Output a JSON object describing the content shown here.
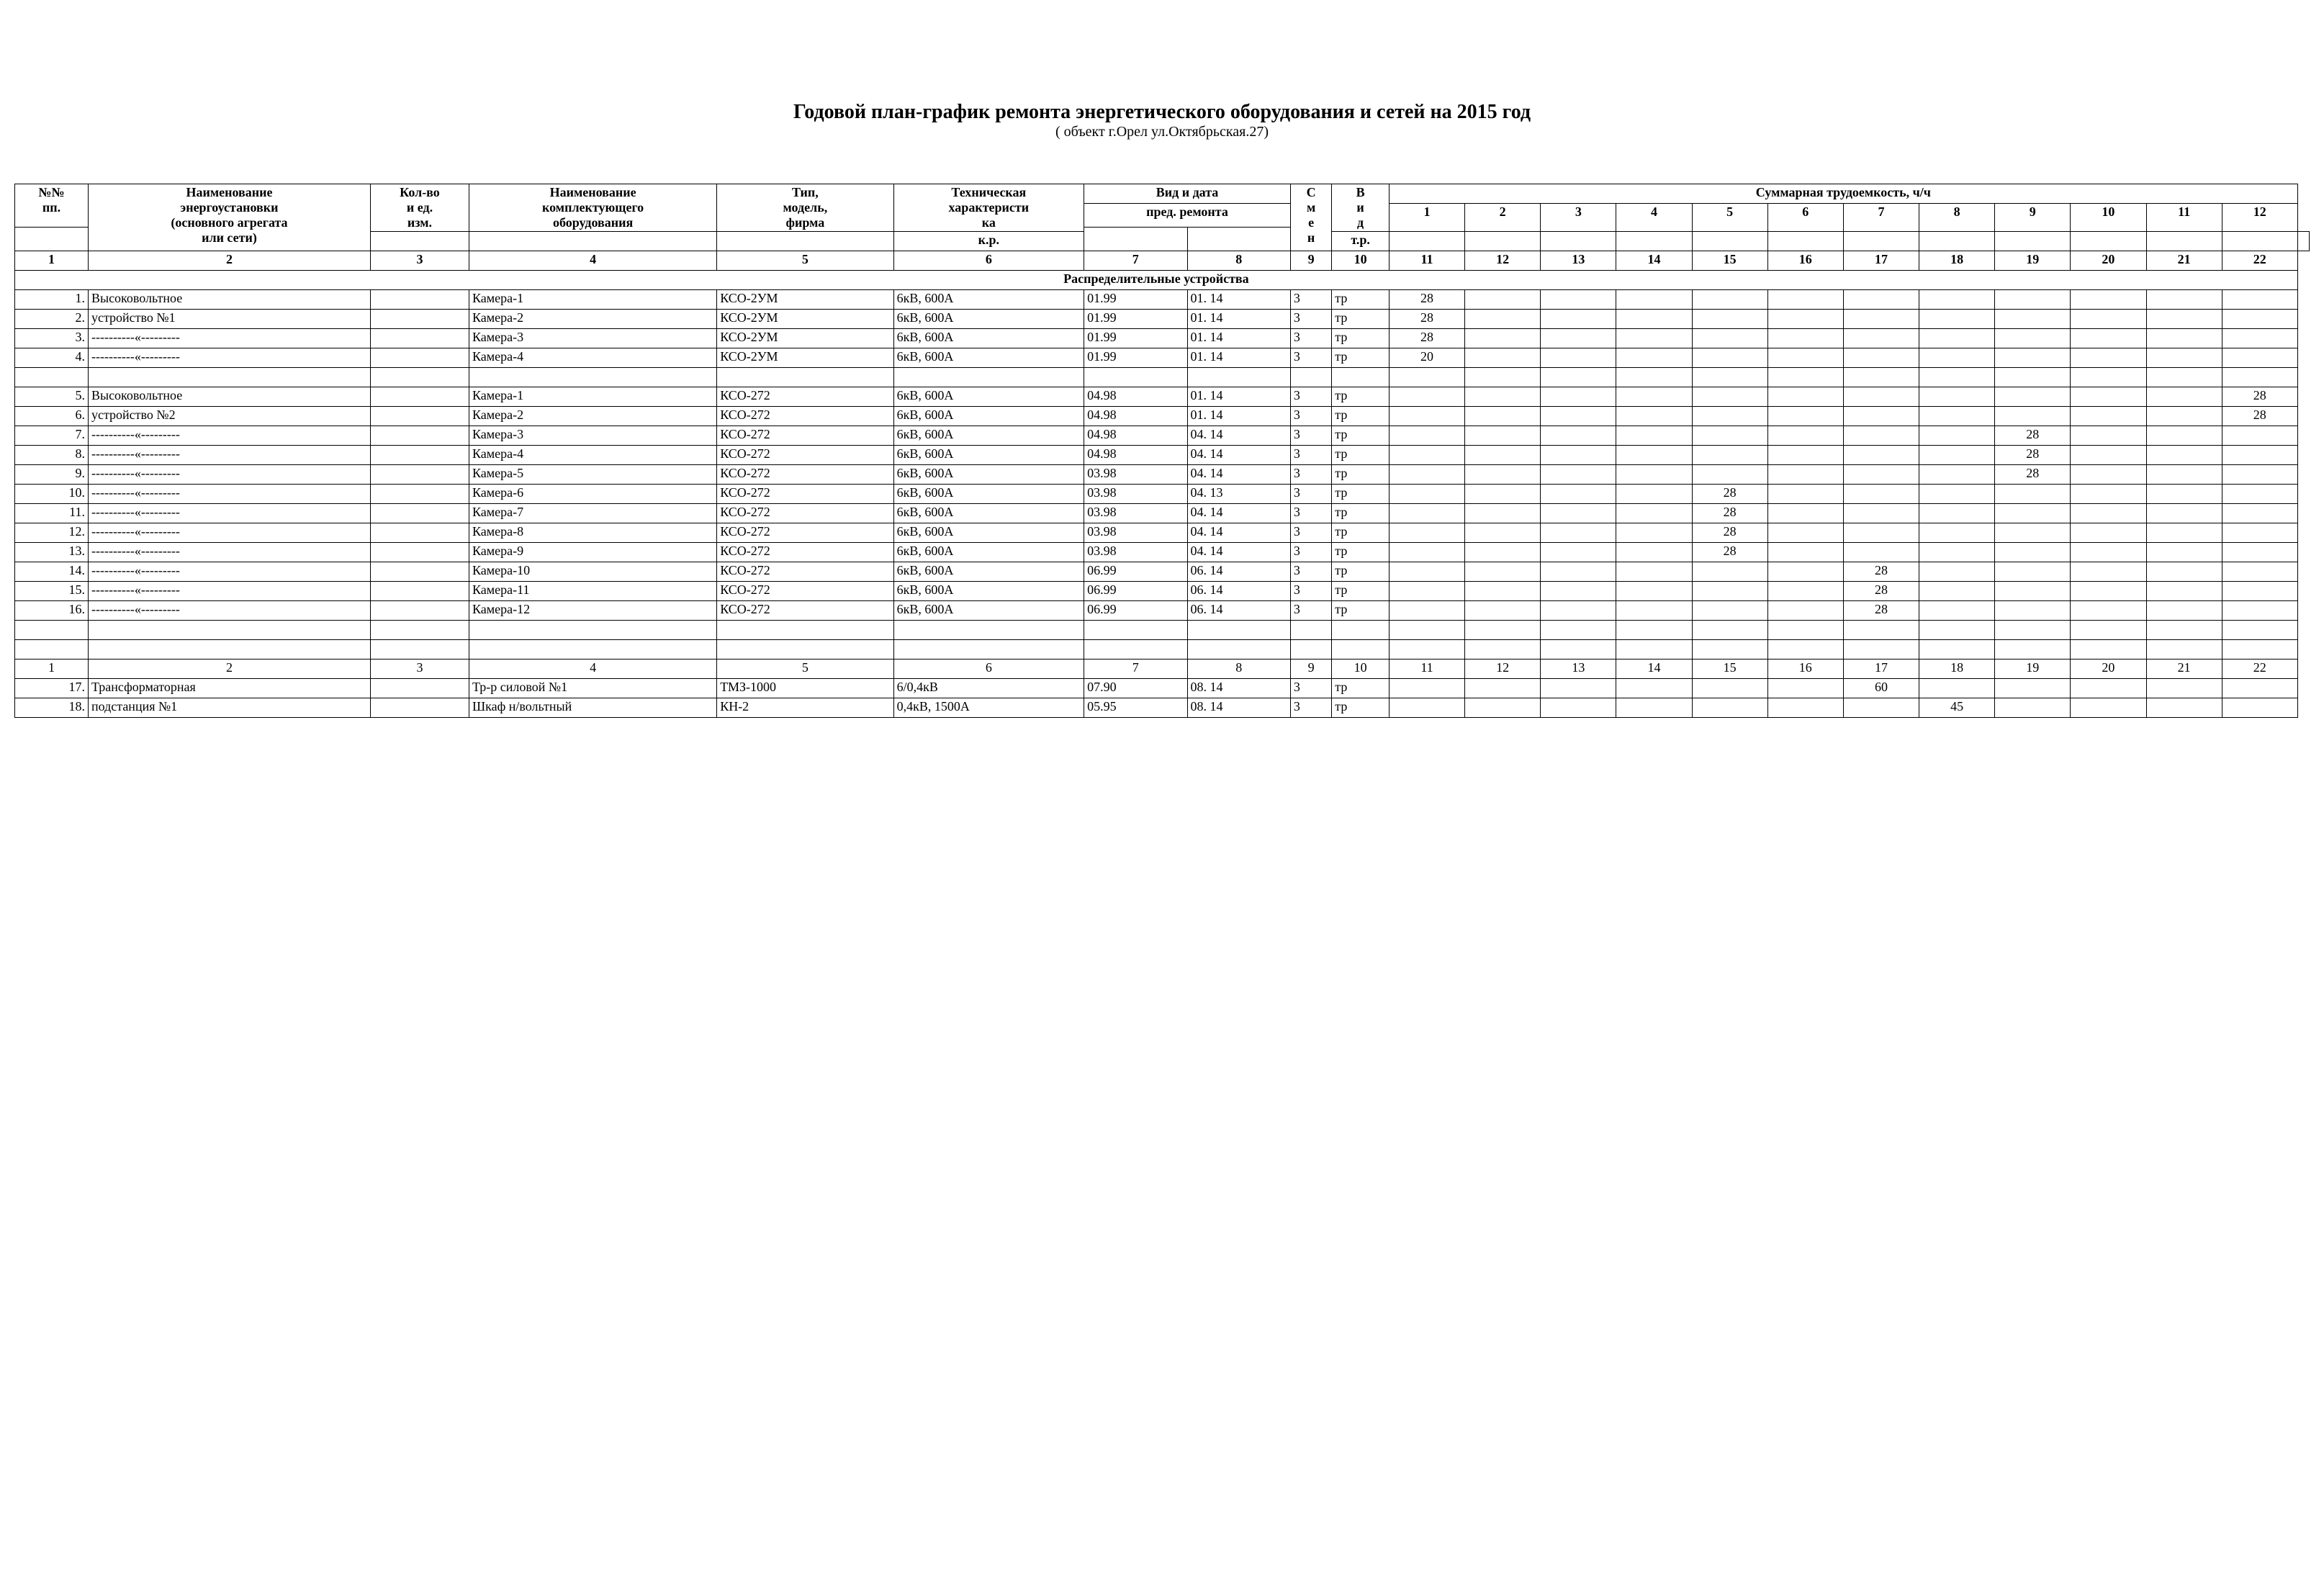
{
  "title": "Годовой план-график ремонта энергетического оборудования и сетей на 2015 год",
  "subtitle": "( объект г.Орел ул.Октябрьская.27)",
  "header": {
    "c1": [
      "№№",
      "пп."
    ],
    "c2": [
      "Наименование",
      "энергоустановки",
      "(основного агрегата",
      "или сети)"
    ],
    "c3": [
      "Кол-во",
      "и ед.",
      "изм."
    ],
    "c4": [
      "Наименование",
      "комплектующего",
      "оборудования"
    ],
    "c5": [
      "Тип,",
      "модель,",
      "фирма"
    ],
    "c6": [
      "Техническая",
      "характеристи",
      "ка"
    ],
    "c78_top": "Вид и дата",
    "c78_bot": "пред. ремонта",
    "c7": "к.р.",
    "c8": "т.р.",
    "c9": [
      "С",
      "м",
      "е",
      "н"
    ],
    "c10": [
      "В",
      "и",
      "д"
    ],
    "sum": "Суммарная трудоемкость, ч/ч",
    "months": [
      "1",
      "2",
      "3",
      "4",
      "5",
      "6",
      "7",
      "8",
      "9",
      "10",
      "11",
      "12"
    ],
    "numrow": [
      "1",
      "2",
      "3",
      "4",
      "5",
      "6",
      "7",
      "8",
      "9",
      "10",
      "11",
      "12",
      "13",
      "14",
      "15",
      "16",
      "17",
      "18",
      "19",
      "20",
      "21",
      "22"
    ]
  },
  "section1": "Распределительные устройства",
  "rows": [
    {
      "n": "1.",
      "name": "Высоковольтное",
      "unit": "",
      "comp": "Камера-1",
      "model": "КСО-2УМ",
      "tech": "6кВ, 600А",
      "kr": "01.99",
      "tr": "01. 14",
      "sm": "3",
      "vid": "тр",
      "v": [
        "28",
        "",
        "",
        "",
        "",
        "",
        "",
        "",
        "",
        "",
        "",
        ""
      ]
    },
    {
      "n": "2.",
      "name": "устройство №1",
      "unit": "",
      "comp": "Камера-2",
      "model": "КСО-2УМ",
      "tech": "6кВ, 600А",
      "kr": "01.99",
      "tr": "01. 14",
      "sm": "3",
      "vid": "тр",
      "v": [
        "28",
        "",
        "",
        "",
        "",
        "",
        "",
        "",
        "",
        "",
        "",
        ""
      ]
    },
    {
      "n": "3.",
      "name": "----------«---------",
      "unit": "",
      "comp": "Камера-3",
      "model": "КСО-2УМ",
      "tech": "6кВ, 600А",
      "kr": "01.99",
      "tr": "01. 14",
      "sm": "3",
      "vid": "тр",
      "v": [
        "28",
        "",
        "",
        "",
        "",
        "",
        "",
        "",
        "",
        "",
        "",
        ""
      ]
    },
    {
      "n": "4.",
      "name": "----------«---------",
      "unit": "",
      "comp": "Камера-4",
      "model": "КСО-2УМ",
      "tech": "6кВ, 600А",
      "kr": "01.99",
      "tr": "01. 14",
      "sm": "3",
      "vid": "тр",
      "v": [
        "20",
        "",
        "",
        "",
        "",
        "",
        "",
        "",
        "",
        "",
        "",
        ""
      ]
    },
    {
      "blank": true
    },
    {
      "n": "5.",
      "name": "Высоковольтное",
      "unit": "",
      "comp": "Камера-1",
      "model": "КСО-272",
      "tech": "6кВ, 600А",
      "kr": "04.98",
      "tr": "01. 14",
      "sm": "3",
      "vid": "тр",
      "v": [
        "",
        "",
        "",
        "",
        "",
        "",
        "",
        "",
        "",
        "",
        "",
        "28"
      ]
    },
    {
      "n": "6.",
      "name": "устройство №2",
      "unit": "",
      "comp": "Камера-2",
      "model": "КСО-272",
      "tech": "6кВ, 600А",
      "kr": "04.98",
      "tr": "01. 14",
      "sm": "3",
      "vid": "тр",
      "v": [
        "",
        "",
        "",
        "",
        "",
        "",
        "",
        "",
        "",
        "",
        "",
        "28"
      ]
    },
    {
      "n": "7.",
      "name": "----------«---------",
      "unit": "",
      "comp": "Камера-3",
      "model": "КСО-272",
      "tech": "6кВ, 600А",
      "kr": "04.98",
      "tr": "04. 14",
      "sm": "3",
      "vid": "тр",
      "v": [
        "",
        "",
        "",
        "",
        "",
        "",
        "",
        "",
        "28",
        "",
        "",
        ""
      ]
    },
    {
      "n": "8.",
      "name": "----------«---------",
      "unit": "",
      "comp": "Камера-4",
      "model": "КСО-272",
      "tech": "6кВ, 600А",
      "kr": "04.98",
      "tr": "04. 14",
      "sm": "3",
      "vid": "тр",
      "v": [
        "",
        "",
        "",
        "",
        "",
        "",
        "",
        "",
        "28",
        "",
        "",
        ""
      ]
    },
    {
      "n": "9.",
      "name": "----------«---------",
      "unit": "",
      "comp": "Камера-5",
      "model": "КСО-272",
      "tech": "6кВ, 600А",
      "kr": "03.98",
      "tr": "04. 14",
      "sm": "3",
      "vid": "тр",
      "v": [
        "",
        "",
        "",
        "",
        "",
        "",
        "",
        "",
        "28",
        "",
        "",
        ""
      ]
    },
    {
      "n": "10.",
      "name": "----------«---------",
      "unit": "",
      "comp": "Камера-6",
      "model": "КСО-272",
      "tech": "6кВ, 600А",
      "kr": "03.98",
      "tr": "04. 13",
      "sm": "3",
      "vid": "тр",
      "v": [
        "",
        "",
        "",
        "",
        "28",
        "",
        "",
        "",
        "",
        "",
        "",
        ""
      ]
    },
    {
      "n": "11.",
      "name": "----------«---------",
      "unit": "",
      "comp": "Камера-7",
      "model": "КСО-272",
      "tech": "6кВ, 600А",
      "kr": "03.98",
      "tr": "04. 14",
      "sm": "3",
      "vid": "тр",
      "v": [
        "",
        "",
        "",
        "",
        "28",
        "",
        "",
        "",
        "",
        "",
        "",
        ""
      ]
    },
    {
      "n": "12.",
      "name": "----------«---------",
      "unit": "",
      "comp": "Камера-8",
      "model": "КСО-272",
      "tech": "6кВ, 600А",
      "kr": "03.98",
      "tr": "04. 14",
      "sm": "3",
      "vid": "тр",
      "v": [
        "",
        "",
        "",
        "",
        "28",
        "",
        "",
        "",
        "",
        "",
        "",
        ""
      ]
    },
    {
      "n": "13.",
      "name": "----------«---------",
      "unit": "",
      "comp": "Камера-9",
      "model": "КСО-272",
      "tech": "6кВ, 600А",
      "kr": "03.98",
      "tr": "04. 14",
      "sm": "3",
      "vid": "тр",
      "v": [
        "",
        "",
        "",
        "",
        "28",
        "",
        "",
        "",
        "",
        "",
        "",
        ""
      ]
    },
    {
      "n": "14.",
      "name": "----------«---------",
      "unit": "",
      "comp": "Камера-10",
      "model": "КСО-272",
      "tech": "6кВ, 600А",
      "kr": "06.99",
      "tr": "06. 14",
      "sm": "3",
      "vid": "тр",
      "v": [
        "",
        "",
        "",
        "",
        "",
        "",
        "28",
        "",
        "",
        "",
        "",
        ""
      ]
    },
    {
      "n": "15.",
      "name": "----------«---------",
      "unit": "",
      "comp": "Камера-11",
      "model": "КСО-272",
      "tech": "6кВ, 600А",
      "kr": "06.99",
      "tr": "06. 14",
      "sm": "3",
      "vid": "тр",
      "v": [
        "",
        "",
        "",
        "",
        "",
        "",
        "28",
        "",
        "",
        "",
        "",
        ""
      ]
    },
    {
      "n": "16.",
      "name": "----------«---------",
      "unit": "",
      "comp": "Камера-12",
      "model": "КСО-272",
      "tech": "6кВ, 600А",
      "kr": "06.99",
      "tr": "06. 14",
      "sm": "3",
      "vid": "тр",
      "v": [
        "",
        "",
        "",
        "",
        "",
        "",
        "28",
        "",
        "",
        "",
        "",
        ""
      ]
    },
    {
      "blank": true
    },
    {
      "blank": true
    },
    {
      "numrow": true
    },
    {
      "n": "17.",
      "name": "Трансформаторная",
      "unit": "",
      "comp": "Тр-р силовой №1",
      "model": "ТМЗ-1000",
      "tech": "6/0,4кВ",
      "kr": "07.90",
      "tr": "08. 14",
      "sm": "3",
      "vid": "тр",
      "v": [
        "",
        "",
        "",
        "",
        "",
        "",
        "60",
        "",
        "",
        "",
        "",
        ""
      ]
    },
    {
      "n": "18.",
      "name": "подстанция №1",
      "unit": "",
      "comp": "Шкаф н/вольтный",
      "model": "КН-2",
      "tech": "0,4кВ, 1500А",
      "kr": "05.95",
      "tr": "08. 14",
      "sm": "3",
      "vid": "тр",
      "v": [
        "",
        "",
        "",
        "",
        "",
        "",
        "",
        "45",
        "",
        "",
        "",
        ""
      ]
    }
  ],
  "style": {
    "bg": "#ffffff",
    "fg": "#000000",
    "border": "#000000",
    "font": "Times New Roman",
    "title_fontsize": 28,
    "body_fontsize": 18
  }
}
